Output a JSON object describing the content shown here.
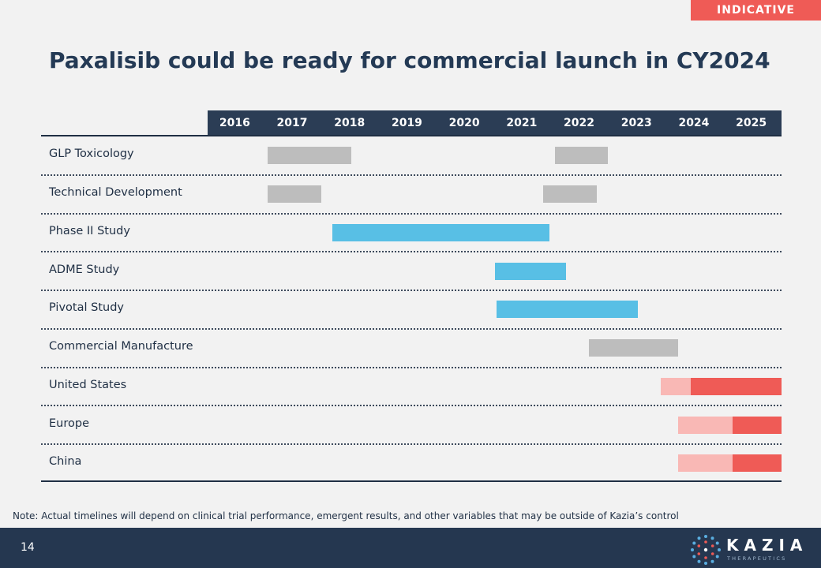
{
  "badge": "INDICATIVE",
  "title": "Paxalisib could be ready for commercial launch in CY2024",
  "timeline": {
    "years": [
      "2016",
      "2017",
      "2018",
      "2019",
      "2020",
      "2021",
      "2022",
      "2023",
      "2024",
      "2025"
    ],
    "rows": [
      {
        "label": "GLP Toxicology",
        "bars": [
          {
            "start": 2017.05,
            "end": 2018.5,
            "status": "preclinical"
          },
          {
            "start": 2022.05,
            "end": 2022.98,
            "status": "preclinical"
          }
        ]
      },
      {
        "label": "Technical Development",
        "bars": [
          {
            "start": 2017.05,
            "end": 2017.98,
            "status": "preclinical"
          },
          {
            "start": 2021.85,
            "end": 2022.78,
            "status": "preclinical"
          }
        ]
      },
      {
        "label": "Phase II Study",
        "bars": [
          {
            "start": 2018.18,
            "end": 2021.95,
            "status": "clinical"
          }
        ]
      },
      {
        "label": "ADME Study",
        "bars": [
          {
            "start": 2021.0,
            "end": 2022.25,
            "status": "clinical"
          }
        ]
      },
      {
        "label": "Pivotal Study",
        "bars": [
          {
            "start": 2021.03,
            "end": 2023.5,
            "status": "clinical"
          }
        ]
      },
      {
        "label": "Commercial Manufacture",
        "bars": [
          {
            "start": 2022.65,
            "end": 2024.2,
            "status": "preclinical"
          }
        ]
      },
      {
        "label": "United States",
        "bars": [
          {
            "start": 2023.9,
            "end": 2024.42,
            "status": "launch-prep"
          },
          {
            "start": 2024.42,
            "end": 2026.0,
            "status": "launch"
          }
        ]
      },
      {
        "label": "Europe",
        "bars": [
          {
            "start": 2024.2,
            "end": 2025.15,
            "status": "launch-prep"
          },
          {
            "start": 2025.15,
            "end": 2026.0,
            "status": "launch"
          }
        ]
      },
      {
        "label": "China",
        "bars": [
          {
            "start": 2024.2,
            "end": 2025.15,
            "status": "launch-prep"
          },
          {
            "start": 2025.15,
            "end": 2026.0,
            "status": "launch"
          }
        ]
      }
    ],
    "colors": {
      "preclinical": "#bdbdbd",
      "clinical": "#58bfe5",
      "launch-prep": "#f9b8b5",
      "launch": "#ef5b56",
      "header": "#2b3d55"
    }
  },
  "note": "Note: Actual timelines will depend on clinical trial performance, emergent results, and other variables that may be outside of Kazia’s control",
  "footer": {
    "page_number": "14",
    "logo_name": "KAZIA",
    "logo_tagline": "THERAPEUTICS",
    "logo_icon": "dotted-circle-icon"
  }
}
